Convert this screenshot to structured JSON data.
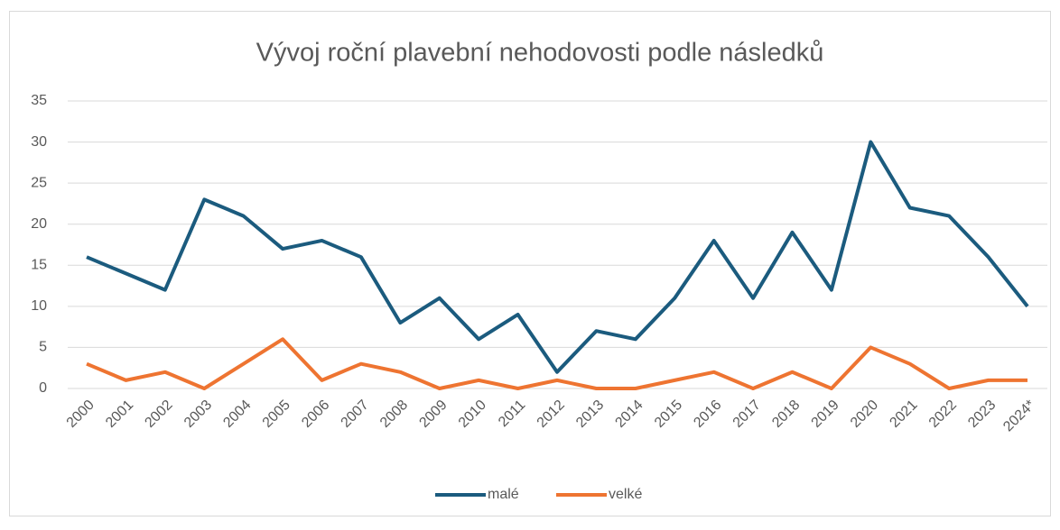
{
  "chart_data": {
    "type": "line",
    "title": "Vývoj roční plavební nehodovosti podle následků",
    "categories": [
      "2000",
      "2001",
      "2002",
      "2003",
      "2004",
      "2005",
      "2006",
      "2007",
      "2008",
      "2009",
      "2010",
      "2011",
      "2012",
      "2013",
      "2014",
      "2015",
      "2016",
      "2017",
      "2018",
      "2019",
      "2020",
      "2021",
      "2022",
      "2023",
      "2024*"
    ],
    "series": [
      {
        "name": "malé",
        "color": "#1b5b7e",
        "values": [
          16,
          14,
          12,
          23,
          21,
          17,
          18,
          16,
          8,
          11,
          6,
          9,
          2,
          7,
          6,
          11,
          18,
          11,
          19,
          12,
          30,
          22,
          21,
          16,
          10
        ]
      },
      {
        "name": "velké",
        "color": "#ee7431",
        "values": [
          3,
          1,
          2,
          0,
          3,
          6,
          1,
          3,
          2,
          0,
          1,
          0,
          1,
          0,
          0,
          1,
          2,
          0,
          2,
          0,
          5,
          3,
          0,
          1,
          1
        ]
      }
    ],
    "ylim": [
      0,
      35
    ],
    "yticks": [
      0,
      5,
      10,
      15,
      20,
      25,
      30,
      35
    ],
    "grid": true,
    "legend": "bottom"
  }
}
